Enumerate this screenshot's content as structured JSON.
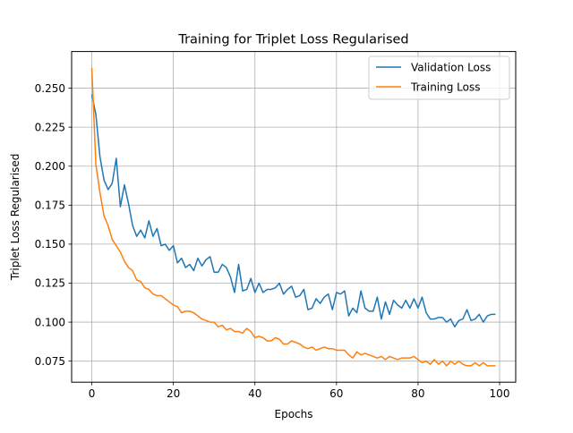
{
  "chart_data": {
    "type": "line",
    "title": "Training for Triplet Loss Regularised",
    "xlabel": "Epochs",
    "ylabel": "Triplet Loss Regularised",
    "xlim": [
      -4.95,
      103.95
    ],
    "ylim": [
      0.0615,
      0.2735
    ],
    "xticks": [
      0,
      20,
      40,
      60,
      80,
      100
    ],
    "yticks": [
      0.075,
      0.1,
      0.125,
      0.15,
      0.175,
      0.2,
      0.225,
      0.25
    ],
    "ytick_labels": [
      "0.075",
      "0.100",
      "0.125",
      "0.150",
      "0.175",
      "0.200",
      "0.225",
      "0.250"
    ],
    "grid": true,
    "legend_position": "upper right",
    "series": [
      {
        "name": "Validation Loss",
        "color": "#1f77b4",
        "x": [
          0,
          1,
          2,
          3,
          4,
          5,
          6,
          7,
          8,
          9,
          10,
          11,
          12,
          13,
          14,
          15,
          16,
          17,
          18,
          19,
          20,
          21,
          22,
          23,
          24,
          25,
          26,
          27,
          28,
          29,
          30,
          31,
          32,
          33,
          34,
          35,
          36,
          37,
          38,
          39,
          40,
          41,
          42,
          43,
          44,
          45,
          46,
          47,
          48,
          49,
          50,
          51,
          52,
          53,
          54,
          55,
          56,
          57,
          58,
          59,
          60,
          61,
          62,
          63,
          64,
          65,
          66,
          67,
          68,
          69,
          70,
          71,
          72,
          73,
          74,
          75,
          76,
          77,
          78,
          79,
          80,
          81,
          82,
          83,
          84,
          85,
          86,
          87,
          88,
          89,
          90,
          91,
          92,
          93,
          94,
          95,
          96,
          97,
          98,
          99
        ],
        "y": [
          0.246,
          0.233,
          0.206,
          0.191,
          0.185,
          0.189,
          0.205,
          0.174,
          0.188,
          0.176,
          0.162,
          0.155,
          0.159,
          0.154,
          0.165,
          0.155,
          0.16,
          0.149,
          0.15,
          0.146,
          0.149,
          0.138,
          0.141,
          0.135,
          0.137,
          0.133,
          0.141,
          0.136,
          0.14,
          0.142,
          0.132,
          0.132,
          0.137,
          0.135,
          0.129,
          0.119,
          0.137,
          0.12,
          0.121,
          0.128,
          0.119,
          0.125,
          0.119,
          0.121,
          0.121,
          0.122,
          0.125,
          0.118,
          0.121,
          0.123,
          0.116,
          0.117,
          0.121,
          0.108,
          0.109,
          0.115,
          0.112,
          0.116,
          0.118,
          0.108,
          0.119,
          0.118,
          0.12,
          0.104,
          0.109,
          0.106,
          0.12,
          0.109,
          0.107,
          0.107,
          0.116,
          0.102,
          0.113,
          0.105,
          0.114,
          0.111,
          0.109,
          0.114,
          0.109,
          0.115,
          0.109,
          0.116,
          0.106,
          0.102,
          0.102,
          0.103,
          0.103,
          0.1,
          0.102,
          0.097,
          0.101,
          0.102,
          0.108,
          0.101,
          0.102,
          0.105,
          0.1,
          0.104,
          0.105,
          0.105
        ]
      },
      {
        "name": "Training Loss",
        "color": "#ff7f0e",
        "x": [
          0,
          1,
          2,
          3,
          4,
          5,
          6,
          7,
          8,
          9,
          10,
          11,
          12,
          13,
          14,
          15,
          16,
          17,
          18,
          19,
          20,
          21,
          22,
          23,
          24,
          25,
          26,
          27,
          28,
          29,
          30,
          31,
          32,
          33,
          34,
          35,
          36,
          37,
          38,
          39,
          40,
          41,
          42,
          43,
          44,
          45,
          46,
          47,
          48,
          49,
          50,
          51,
          52,
          53,
          54,
          55,
          56,
          57,
          58,
          59,
          60,
          61,
          62,
          63,
          64,
          65,
          66,
          67,
          68,
          69,
          70,
          71,
          72,
          73,
          74,
          75,
          76,
          77,
          78,
          79,
          80,
          81,
          82,
          83,
          84,
          85,
          86,
          87,
          88,
          89,
          90,
          91,
          92,
          93,
          94,
          95,
          96,
          97,
          98,
          99
        ],
        "y": [
          0.263,
          0.201,
          0.183,
          0.168,
          0.162,
          0.153,
          0.149,
          0.145,
          0.139,
          0.135,
          0.133,
          0.127,
          0.126,
          0.122,
          0.121,
          0.118,
          0.117,
          0.117,
          0.115,
          0.113,
          0.111,
          0.11,
          0.106,
          0.107,
          0.107,
          0.106,
          0.104,
          0.102,
          0.101,
          0.1,
          0.1,
          0.097,
          0.098,
          0.095,
          0.096,
          0.094,
          0.094,
          0.093,
          0.096,
          0.094,
          0.09,
          0.091,
          0.09,
          0.088,
          0.088,
          0.09,
          0.089,
          0.086,
          0.086,
          0.088,
          0.087,
          0.086,
          0.084,
          0.083,
          0.084,
          0.082,
          0.083,
          0.084,
          0.083,
          0.083,
          0.082,
          0.082,
          0.082,
          0.079,
          0.077,
          0.081,
          0.079,
          0.08,
          0.079,
          0.078,
          0.077,
          0.078,
          0.076,
          0.078,
          0.077,
          0.076,
          0.077,
          0.077,
          0.077,
          0.078,
          0.076,
          0.074,
          0.075,
          0.073,
          0.076,
          0.073,
          0.075,
          0.072,
          0.075,
          0.073,
          0.075,
          0.073,
          0.072,
          0.072,
          0.074,
          0.072,
          0.074,
          0.072,
          0.072,
          0.072
        ]
      }
    ]
  }
}
